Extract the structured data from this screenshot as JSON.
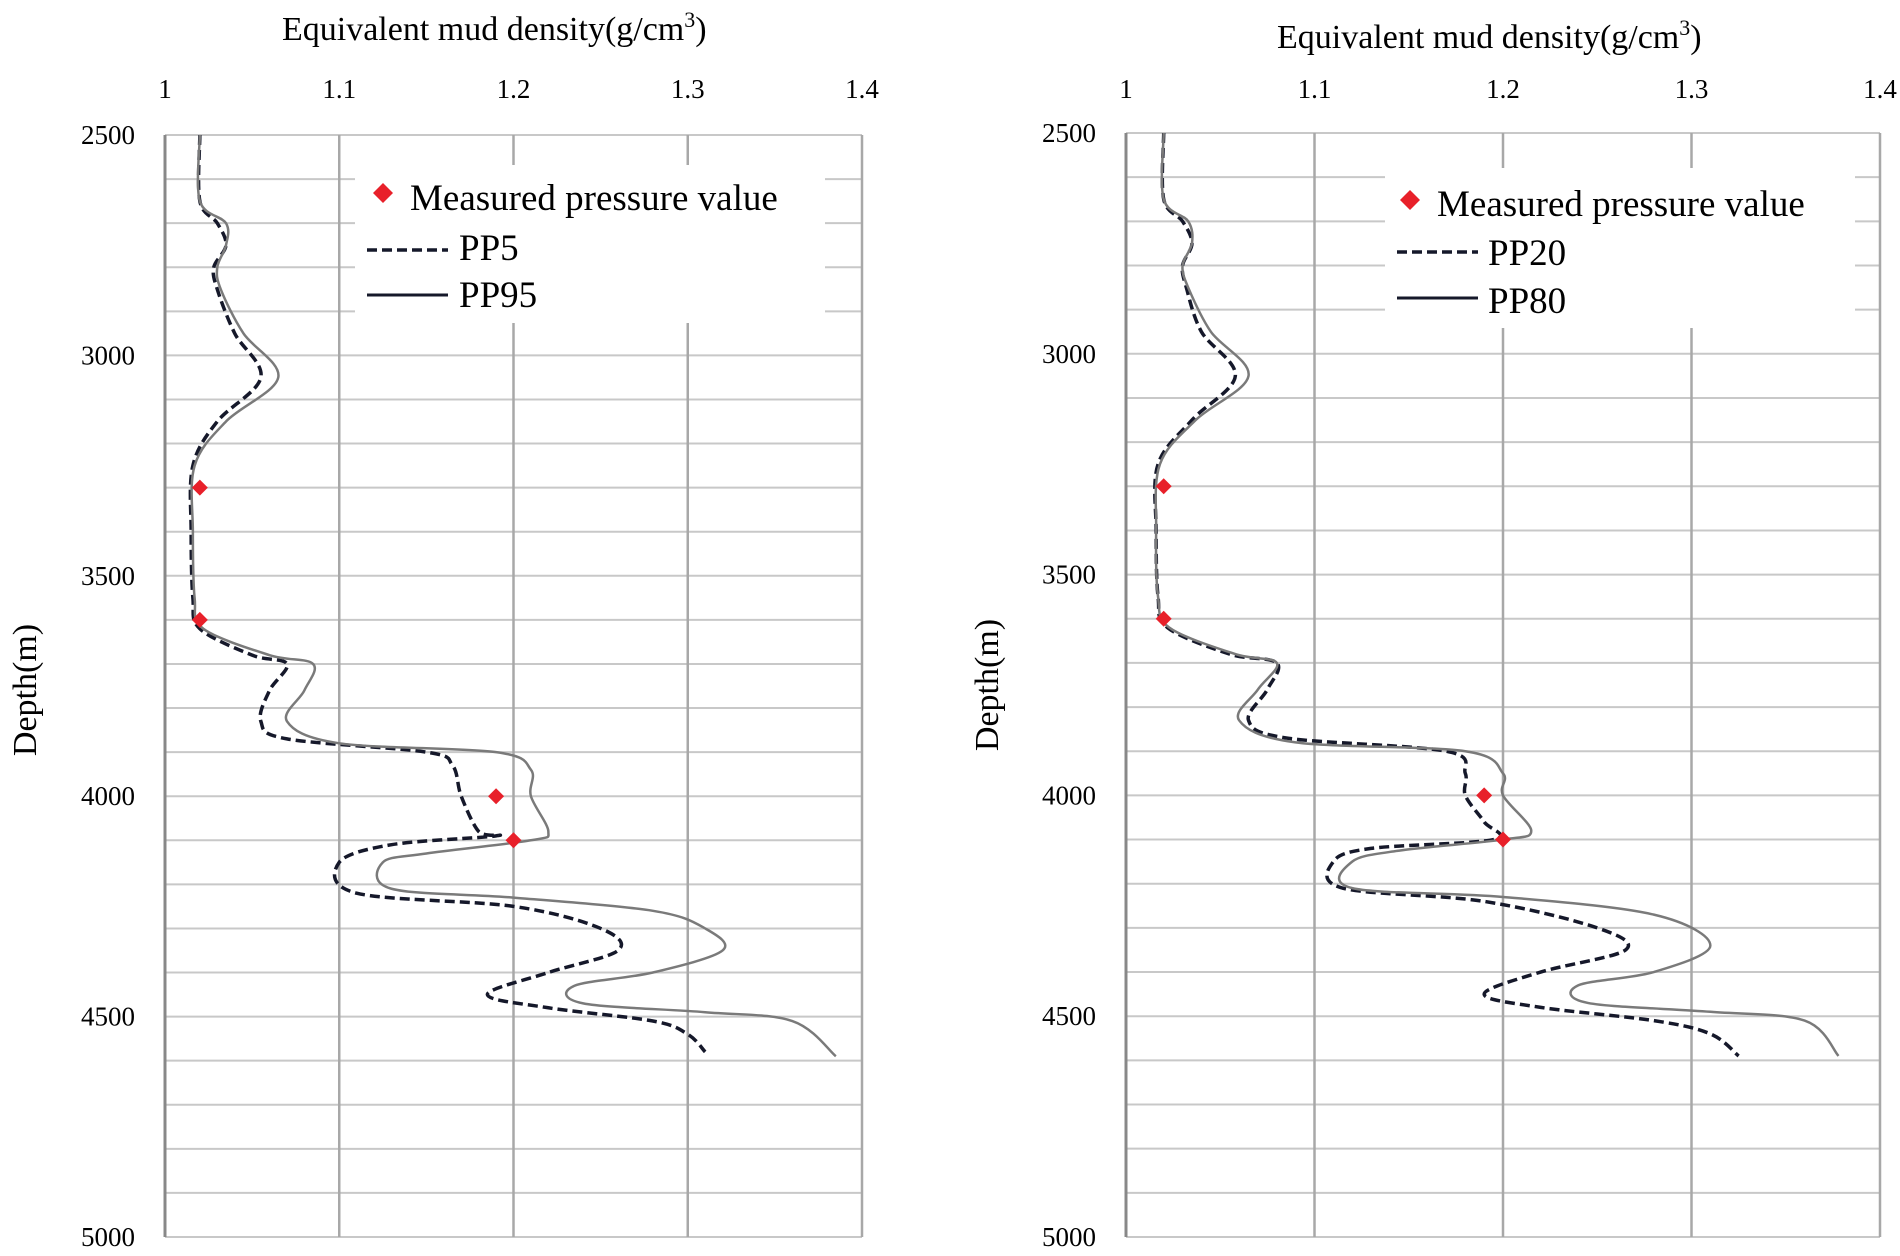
{
  "chart_data": [
    {
      "type": "line",
      "xlabel": "Equivalent mud density(g/cm",
      "xlabel_sup": "3",
      "xlabel_end": ")",
      "ylabel": "Depth(m)",
      "xlim": [
        1,
        1.4
      ],
      "ylim": [
        2500,
        5000
      ],
      "y_inverted": true,
      "x_ticks": [
        "1",
        "1.1",
        "1.2",
        "1.3",
        "1.4"
      ],
      "y_ticks": [
        "2500",
        "3000",
        "3500",
        "4000",
        "4500",
        "5000"
      ],
      "grid": true,
      "legend": [
        "Measured pressure value",
        "PP5",
        "PP95"
      ],
      "measured": [
        {
          "x": 1.02,
          "y": 3300
        },
        {
          "x": 1.02,
          "y": 3600
        },
        {
          "x": 1.19,
          "y": 4000
        },
        {
          "x": 1.2,
          "y": 4100
        }
      ],
      "series": [
        {
          "name": "PP5",
          "style": "dashed",
          "points": [
            [
              1.02,
              2500
            ],
            [
              1.02,
              2650
            ],
            [
              1.03,
              2700
            ],
            [
              1.035,
              2750
            ],
            [
              1.028,
              2800
            ],
            [
              1.03,
              2850
            ],
            [
              1.04,
              2950
            ],
            [
              1.055,
              3050
            ],
            [
              1.03,
              3150
            ],
            [
              1.016,
              3250
            ],
            [
              1.015,
              3400
            ],
            [
              1.016,
              3550
            ],
            [
              1.02,
              3620
            ],
            [
              1.05,
              3680
            ],
            [
              1.07,
              3700
            ],
            [
              1.06,
              3760
            ],
            [
              1.055,
              3830
            ],
            [
              1.07,
              3870
            ],
            [
              1.15,
              3900
            ],
            [
              1.165,
              3930
            ],
            [
              1.17,
              4000
            ],
            [
              1.18,
              4080
            ],
            [
              1.19,
              4090
            ],
            [
              1.13,
              4110
            ],
            [
              1.1,
              4150
            ],
            [
              1.11,
              4220
            ],
            [
              1.2,
              4250
            ],
            [
              1.25,
              4300
            ],
            [
              1.26,
              4350
            ],
            [
              1.22,
              4400
            ],
            [
              1.185,
              4450
            ],
            [
              1.22,
              4480
            ],
            [
              1.28,
              4510
            ],
            [
              1.3,
              4540
            ],
            [
              1.31,
              4580
            ]
          ]
        },
        {
          "name": "PP95",
          "style": "solid",
          "points": [
            [
              1.02,
              2500
            ],
            [
              1.02,
              2650
            ],
            [
              1.035,
              2700
            ],
            [
              1.035,
              2750
            ],
            [
              1.03,
              2800
            ],
            [
              1.032,
              2850
            ],
            [
              1.045,
              2950
            ],
            [
              1.065,
              3050
            ],
            [
              1.035,
              3150
            ],
            [
              1.017,
              3250
            ],
            [
              1.016,
              3400
            ],
            [
              1.017,
              3550
            ],
            [
              1.022,
              3620
            ],
            [
              1.06,
              3680
            ],
            [
              1.085,
              3700
            ],
            [
              1.08,
              3760
            ],
            [
              1.07,
              3830
            ],
            [
              1.1,
              3880
            ],
            [
              1.19,
              3900
            ],
            [
              1.21,
              3940
            ],
            [
              1.21,
              4000
            ],
            [
              1.22,
              4080
            ],
            [
              1.21,
              4100
            ],
            [
              1.15,
              4130
            ],
            [
              1.125,
              4150
            ],
            [
              1.13,
              4210
            ],
            [
              1.2,
              4230
            ],
            [
              1.28,
              4260
            ],
            [
              1.31,
              4300
            ],
            [
              1.32,
              4350
            ],
            [
              1.28,
              4400
            ],
            [
              1.235,
              4430
            ],
            [
              1.24,
              4470
            ],
            [
              1.31,
              4490
            ],
            [
              1.36,
              4510
            ],
            [
              1.385,
              4590
            ]
          ]
        }
      ]
    },
    {
      "type": "line",
      "xlabel": "Equivalent mud density(g/cm",
      "xlabel_sup": "3",
      "xlabel_end": ")",
      "ylabel": "Depth(m)",
      "xlim": [
        1,
        1.4
      ],
      "ylim": [
        2500,
        5000
      ],
      "y_inverted": true,
      "x_ticks": [
        "1",
        "1.1",
        "1.2",
        "1.3",
        "1.4"
      ],
      "y_ticks": [
        "2500",
        "3000",
        "3500",
        "4000",
        "4500",
        "5000"
      ],
      "grid": true,
      "legend": [
        "Measured pressure value",
        "PP20",
        "PP80"
      ],
      "measured": [
        {
          "x": 1.02,
          "y": 3300
        },
        {
          "x": 1.02,
          "y": 3600
        },
        {
          "x": 1.19,
          "y": 4000
        },
        {
          "x": 1.2,
          "y": 4100
        }
      ],
      "series": [
        {
          "name": "PP20",
          "style": "dashed",
          "points": [
            [
              1.02,
              2500
            ],
            [
              1.02,
              2650
            ],
            [
              1.03,
              2700
            ],
            [
              1.035,
              2750
            ],
            [
              1.03,
              2800
            ],
            [
              1.032,
              2850
            ],
            [
              1.04,
              2950
            ],
            [
              1.058,
              3050
            ],
            [
              1.035,
              3150
            ],
            [
              1.017,
              3250
            ],
            [
              1.016,
              3400
            ],
            [
              1.017,
              3550
            ],
            [
              1.022,
              3620
            ],
            [
              1.055,
              3680
            ],
            [
              1.08,
              3700
            ],
            [
              1.075,
              3760
            ],
            [
              1.065,
              3830
            ],
            [
              1.085,
              3870
            ],
            [
              1.17,
              3900
            ],
            [
              1.18,
              3950
            ],
            [
              1.18,
              4000
            ],
            [
              1.19,
              4060
            ],
            [
              1.195,
              4100
            ],
            [
              1.13,
              4120
            ],
            [
              1.11,
              4150
            ],
            [
              1.115,
              4210
            ],
            [
              1.19,
              4240
            ],
            [
              1.25,
              4300
            ],
            [
              1.265,
              4350
            ],
            [
              1.22,
              4400
            ],
            [
              1.19,
              4450
            ],
            [
              1.22,
              4480
            ],
            [
              1.28,
              4510
            ],
            [
              1.31,
              4540
            ],
            [
              1.325,
              4590
            ]
          ]
        },
        {
          "name": "PP80",
          "style": "solid",
          "points": [
            [
              1.02,
              2500
            ],
            [
              1.02,
              2650
            ],
            [
              1.033,
              2700
            ],
            [
              1.035,
              2750
            ],
            [
              1.03,
              2800
            ],
            [
              1.033,
              2850
            ],
            [
              1.045,
              2950
            ],
            [
              1.065,
              3050
            ],
            [
              1.037,
              3150
            ],
            [
              1.018,
              3250
            ],
            [
              1.016,
              3400
            ],
            [
              1.017,
              3550
            ],
            [
              1.023,
              3620
            ],
            [
              1.058,
              3680
            ],
            [
              1.08,
              3700
            ],
            [
              1.07,
              3760
            ],
            [
              1.06,
              3830
            ],
            [
              1.09,
              3880
            ],
            [
              1.18,
              3900
            ],
            [
              1.2,
              3950
            ],
            [
              1.2,
              4000
            ],
            [
              1.215,
              4080
            ],
            [
              1.2,
              4100
            ],
            [
              1.145,
              4125
            ],
            [
              1.12,
              4150
            ],
            [
              1.12,
              4210
            ],
            [
              1.2,
              4230
            ],
            [
              1.28,
              4270
            ],
            [
              1.31,
              4340
            ],
            [
              1.28,
              4400
            ],
            [
              1.24,
              4430
            ],
            [
              1.245,
              4470
            ],
            [
              1.31,
              4490
            ],
            [
              1.36,
              4510
            ],
            [
              1.378,
              4590
            ]
          ]
        }
      ]
    }
  ]
}
